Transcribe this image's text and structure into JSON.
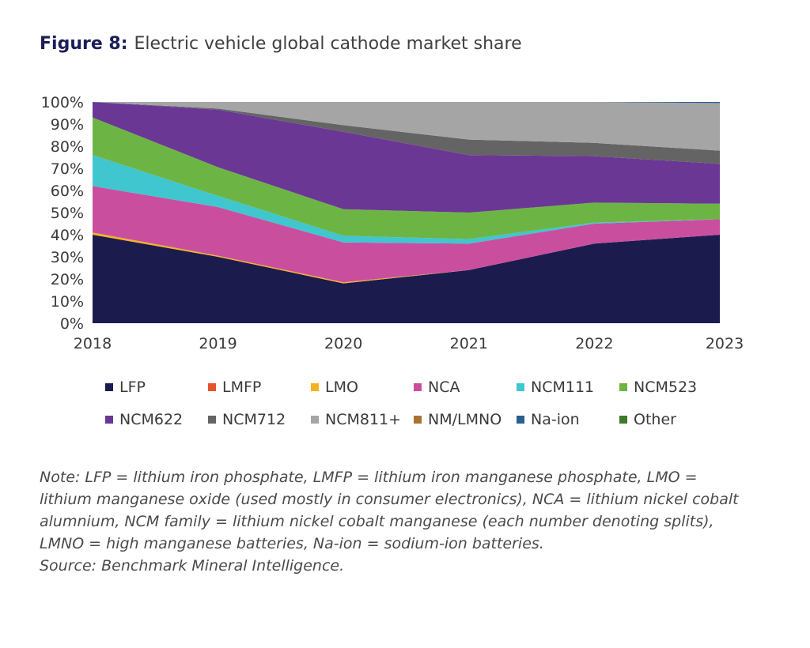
{
  "figure": {
    "label": "Figure 8:",
    "title": "Electric vehicle global cathode market share"
  },
  "note": {
    "text": "Note: LFP = lithium iron phosphate, LMFP = lithium iron manganese phosphate, LMO = lithium manganese oxide (used mostly in consumer electronics), NCA = lithium nickel cobalt alumnium, NCM family = lithium nickel cobalt manganese (each number denoting splits), LMNO = high manganese batteries, Na-ion = sodium-ion batteries.",
    "source": "Source: Benchmark Mineral Intelligence."
  },
  "chart_data": {
    "type": "area",
    "stacked": true,
    "title": "Electric vehicle global cathode market share",
    "x": [
      "2018",
      "2019",
      "2020",
      "2021",
      "2022",
      "2023"
    ],
    "ylim": [
      0,
      100
    ],
    "yticks": [
      "0%",
      "10%",
      "20%",
      "30%",
      "40%",
      "50%",
      "60%",
      "70%",
      "80%",
      "90%",
      "100%"
    ],
    "legend_position": "bottom",
    "grid": false,
    "series": [
      {
        "name": "LFP",
        "color": "#1c1b4d",
        "values": [
          40,
          30,
          18,
          24,
          36,
          40
        ]
      },
      {
        "name": "LMFP",
        "color": "#e5532a",
        "values": [
          0,
          0,
          0,
          0,
          0,
          0
        ]
      },
      {
        "name": "LMO",
        "color": "#f5b21f",
        "values": [
          1,
          0.5,
          0.5,
          0,
          0,
          0
        ]
      },
      {
        "name": "NCA",
        "color": "#c94f9e",
        "values": [
          21,
          22,
          18,
          12,
          9,
          7
        ]
      },
      {
        "name": "NCM111",
        "color": "#3fc6cf",
        "values": [
          14,
          5,
          3,
          2,
          0.5,
          0
        ]
      },
      {
        "name": "NCM523",
        "color": "#6cb545",
        "values": [
          17,
          13,
          12,
          12,
          9,
          7
        ]
      },
      {
        "name": "NCM622",
        "color": "#6b3795",
        "values": [
          7,
          26,
          35,
          26,
          21,
          18
        ]
      },
      {
        "name": "NCM712",
        "color": "#646464",
        "values": [
          0,
          0.5,
          3,
          7,
          6,
          6
        ]
      },
      {
        "name": "NCM811+",
        "color": "#a5a5a5",
        "values": [
          0,
          3,
          10.5,
          17,
          18.5,
          21.5
        ]
      },
      {
        "name": "NM/LMNO",
        "color": "#a87332",
        "values": [
          0,
          0,
          0,
          0,
          0,
          0
        ]
      },
      {
        "name": "Na-ion",
        "color": "#2a5e8f",
        "values": [
          0,
          0,
          0,
          0,
          0,
          0.5
        ]
      },
      {
        "name": "Other",
        "color": "#3e7a2c",
        "values": [
          0,
          0,
          0,
          0,
          0,
          0
        ]
      }
    ]
  }
}
